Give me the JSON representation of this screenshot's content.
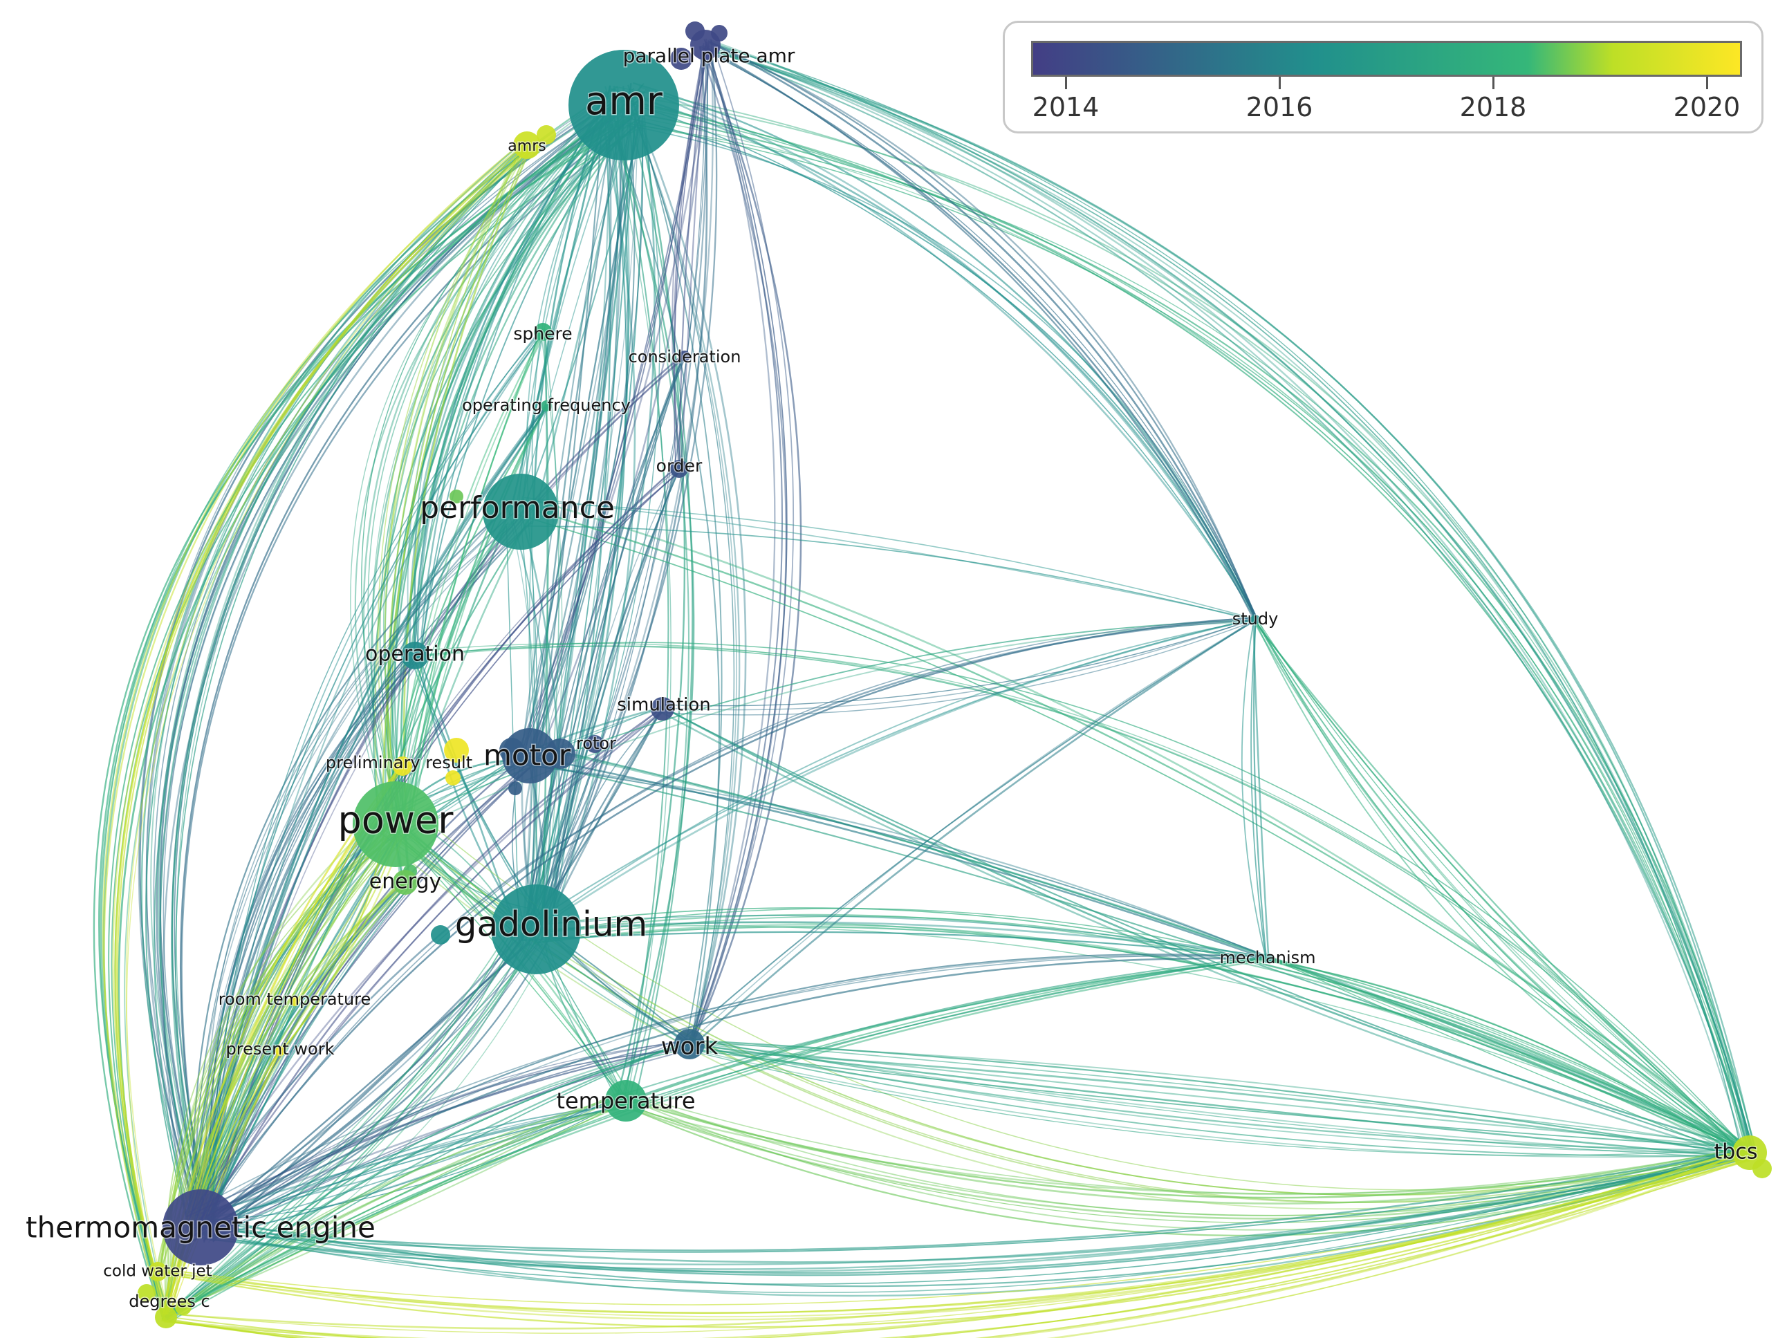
{
  "legend": {
    "ticks": [
      "2014",
      "2016",
      "2018",
      "2020"
    ],
    "colors": [
      "#433e85",
      "#21908c",
      "#35b779",
      "#bddf26",
      "#fde725"
    ]
  },
  "nodes": [
    {
      "id": "amr",
      "label": "amr",
      "year": 2016.0
    },
    {
      "id": "parallel-plate-amr",
      "label": "parallel plate amr",
      "year": 2014.0
    },
    {
      "id": "amrs",
      "label": "amrs",
      "year": 2019.3
    },
    {
      "id": "sphere",
      "label": "sphere",
      "year": 2017.8
    },
    {
      "id": "consideration",
      "label": "consideration",
      "year": 2014.2
    },
    {
      "id": "operating-frequency",
      "label": "operating frequency",
      "year": 2017.5
    },
    {
      "id": "order",
      "label": "order",
      "year": 2014.3
    },
    {
      "id": "performance",
      "label": "performance",
      "year": 2016.2
    },
    {
      "id": "study",
      "label": "study",
      "year": 2016.0
    },
    {
      "id": "operation",
      "label": "operation",
      "year": 2015.9
    },
    {
      "id": "simulation",
      "label": "simulation",
      "year": 2014.2
    },
    {
      "id": "rotor",
      "label": "rotor",
      "year": 2014.3
    },
    {
      "id": "motor",
      "label": "motor",
      "year": 2014.6
    },
    {
      "id": "preliminary-result",
      "label": "preliminary result",
      "year": 2020.0
    },
    {
      "id": "power",
      "label": "power",
      "year": 2018.2
    },
    {
      "id": "energy",
      "label": "energy",
      "year": 2018.4
    },
    {
      "id": "gadolinium",
      "label": "gadolinium",
      "year": 2016.0
    },
    {
      "id": "mechanism",
      "label": "mechanism",
      "year": 2016.3
    },
    {
      "id": "room-temperature",
      "label": "room temperature",
      "year": 2019.9
    },
    {
      "id": "present-work",
      "label": "present work",
      "year": 2020.0
    },
    {
      "id": "work",
      "label": "work",
      "year": 2014.9
    },
    {
      "id": "temperature",
      "label": "temperature",
      "year": 2017.8
    },
    {
      "id": "tbcs",
      "label": "tbcs",
      "year": 2019.0
    },
    {
      "id": "thermomagnetic-engine",
      "label": "thermomagnetic engine",
      "year": 2014.0
    },
    {
      "id": "cold-water-jet",
      "label": "cold water jet",
      "year": 2019.2
    },
    {
      "id": "degrees-c",
      "label": "degrees c",
      "year": 2019.0
    }
  ]
}
